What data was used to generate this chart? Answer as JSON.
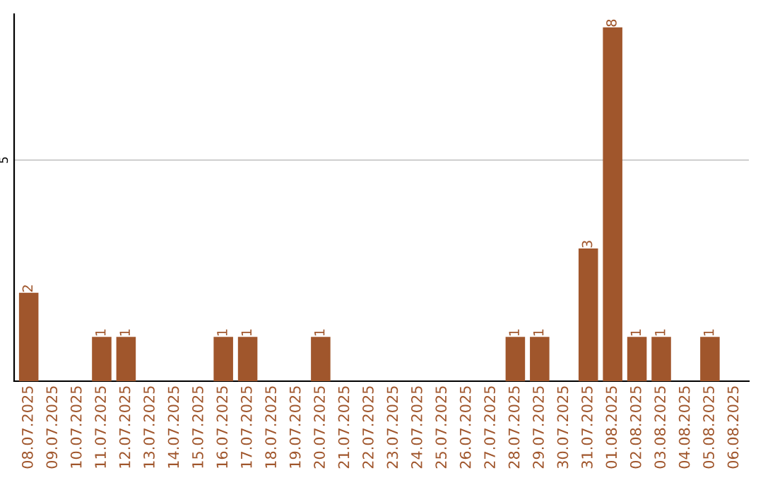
{
  "chart_data": {
    "type": "bar",
    "categories": [
      "08.07.2025",
      "09.07.2025",
      "10.07.2025",
      "11.07.2025",
      "12.07.2025",
      "13.07.2025",
      "14.07.2025",
      "15.07.2025",
      "16.07.2025",
      "17.07.2025",
      "18.07.2025",
      "19.07.2025",
      "20.07.2025",
      "21.07.2025",
      "22.07.2025",
      "23.07.2025",
      "24.07.2025",
      "25.07.2025",
      "26.07.2025",
      "27.07.2025",
      "28.07.2025",
      "29.07.2025",
      "30.07.2025",
      "31.07.2025",
      "01.08.2025",
      "02.08.2025",
      "03.08.2025",
      "04.08.2025",
      "05.08.2025",
      "06.08.2025"
    ],
    "values": [
      2,
      0,
      0,
      1,
      1,
      0,
      0,
      0,
      1,
      1,
      0,
      0,
      1,
      0,
      0,
      0,
      0,
      0,
      0,
      0,
      1,
      1,
      0,
      3,
      8,
      1,
      1,
      0,
      1,
      0
    ],
    "value_labels": [
      "2",
      null,
      null,
      "1",
      "1",
      null,
      null,
      null,
      "1",
      "1",
      null,
      null,
      "1",
      null,
      null,
      null,
      null,
      null,
      null,
      null,
      "1",
      "1",
      null,
      "3",
      "8",
      "1",
      "1",
      null,
      "1",
      null
    ],
    "color": "#a0562c",
    "ylim": [
      0,
      8.3
    ],
    "yticks": [
      5
    ],
    "grid": "y"
  }
}
